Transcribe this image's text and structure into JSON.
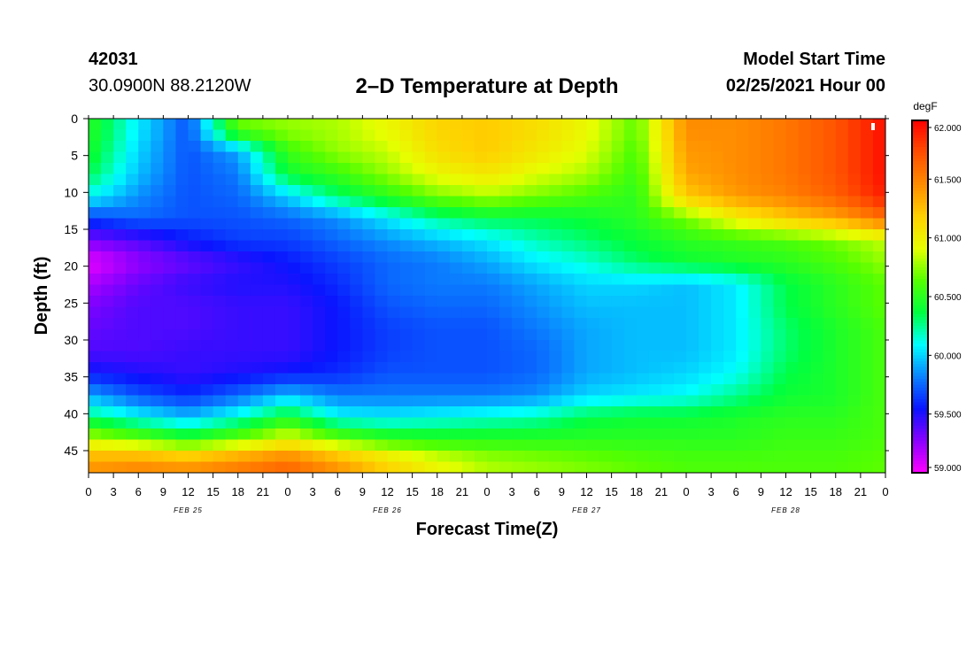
{
  "header": {
    "station_id": "42031",
    "coordinates": "30.0900N 88.2120W",
    "title": "2–D Temperature at Depth",
    "start_label": "Model Start Time",
    "start_value": "02/25/2021 Hour 00"
  },
  "chart_data": {
    "type": "heatmap",
    "title": "2–D Temperature at Depth",
    "xlabel": "Forecast Time(Z)",
    "ylabel": "Depth (ft)",
    "x_ticks": [
      "0",
      "3",
      "6",
      "9",
      "12",
      "15",
      "18",
      "21",
      "0",
      "3",
      "6",
      "9",
      "12",
      "15",
      "18",
      "21",
      "0",
      "3",
      "6",
      "9",
      "12",
      "15",
      "18",
      "21",
      "0",
      "3",
      "6",
      "9",
      "12",
      "15",
      "18",
      "21",
      "0"
    ],
    "x_hours_range": [
      0,
      96
    ],
    "day_labels": [
      "FEB 25",
      "FEB 26",
      "FEB 27",
      "FEB 28"
    ],
    "y_ticks": [
      0,
      5,
      10,
      15,
      20,
      25,
      30,
      35,
      40,
      45
    ],
    "ylim": [
      0,
      48
    ],
    "y_inverted": true,
    "colorbar": {
      "unit": "degF",
      "min": 59.0,
      "max": 62.0,
      "ticks": [
        "59.000",
        "59.500",
        "60.000",
        "60.500",
        "61.000",
        "61.500",
        "62.000"
      ],
      "colors": [
        "#ff00ff",
        "#8a00ff",
        "#0a14ff",
        "#0a82ff",
        "#00ffff",
        "#00ff40",
        "#55ff00",
        "#e6ff00",
        "#ffd000",
        "#ff8c00",
        "#ff4d00",
        "#ff0000"
      ]
    },
    "depth_bins": [
      1.5,
      4.5,
      7.5,
      10.5,
      13.5,
      16.5,
      19.5,
      22.5,
      25.5,
      28.5,
      31.5,
      34.5,
      37.5,
      40.5,
      43.5,
      46.5
    ],
    "time_hours": [
      0,
      6,
      12,
      18,
      24,
      30,
      36,
      42,
      48,
      54,
      60,
      66,
      72,
      78,
      84,
      90,
      96
    ],
    "temperature_degF": [
      [
        60.5,
        60.05,
        59.7,
        60.65,
        60.75,
        60.8,
        60.95,
        61.15,
        61.2,
        61.1,
        60.95,
        60.65,
        61.45,
        61.45,
        61.55,
        61.7,
        61.95
      ],
      [
        60.45,
        60.0,
        59.7,
        59.9,
        60.55,
        60.75,
        60.85,
        61.1,
        61.2,
        61.05,
        60.9,
        60.6,
        61.4,
        61.45,
        61.55,
        61.7,
        61.95
      ],
      [
        60.35,
        59.95,
        59.7,
        59.8,
        60.4,
        60.55,
        60.75,
        60.95,
        61.05,
        60.9,
        60.8,
        60.55,
        61.35,
        61.45,
        61.55,
        61.7,
        61.95
      ],
      [
        60.1,
        59.85,
        59.7,
        59.75,
        60.0,
        60.3,
        60.5,
        60.7,
        60.8,
        60.7,
        60.6,
        60.5,
        61.2,
        61.4,
        61.5,
        61.65,
        61.9
      ],
      [
        59.65,
        59.75,
        59.7,
        59.7,
        59.75,
        59.85,
        60.05,
        60.25,
        60.35,
        60.35,
        60.4,
        60.5,
        60.7,
        61.0,
        61.2,
        61.35,
        61.6
      ],
      [
        59.3,
        59.4,
        59.55,
        59.65,
        59.65,
        59.75,
        59.85,
        59.95,
        60.05,
        60.2,
        60.3,
        60.4,
        60.5,
        60.55,
        60.6,
        60.7,
        60.85
      ],
      [
        59.05,
        59.25,
        59.35,
        59.45,
        59.55,
        59.65,
        59.75,
        59.8,
        59.9,
        60.05,
        60.15,
        60.3,
        60.4,
        60.45,
        60.5,
        60.6,
        60.75
      ],
      [
        59.2,
        59.35,
        59.45,
        59.5,
        59.5,
        59.6,
        59.75,
        59.8,
        59.8,
        59.9,
        60.0,
        60.0,
        59.95,
        60.05,
        60.35,
        60.5,
        60.65
      ],
      [
        59.3,
        59.4,
        59.4,
        59.45,
        59.45,
        59.55,
        59.7,
        59.75,
        59.75,
        59.85,
        59.95,
        59.95,
        59.95,
        60.05,
        60.35,
        60.5,
        60.65
      ],
      [
        59.35,
        59.4,
        59.4,
        59.45,
        59.45,
        59.55,
        59.65,
        59.7,
        59.7,
        59.8,
        59.9,
        59.95,
        59.95,
        60.05,
        60.3,
        60.45,
        60.6
      ],
      [
        59.4,
        59.4,
        59.45,
        59.45,
        59.45,
        59.55,
        59.65,
        59.7,
        59.7,
        59.75,
        59.9,
        59.95,
        59.95,
        60.05,
        60.3,
        60.45,
        60.6
      ],
      [
        59.55,
        59.5,
        59.45,
        59.5,
        59.55,
        59.6,
        59.7,
        59.7,
        59.7,
        59.75,
        59.9,
        59.95,
        60.0,
        60.1,
        60.35,
        60.45,
        60.6
      ],
      [
        59.9,
        59.7,
        59.6,
        59.75,
        59.95,
        59.8,
        59.8,
        59.8,
        59.8,
        59.85,
        60.0,
        60.05,
        60.1,
        60.25,
        60.4,
        60.45,
        60.6
      ],
      [
        60.3,
        60.1,
        59.95,
        60.15,
        60.45,
        60.1,
        60.05,
        60.1,
        60.15,
        60.2,
        60.35,
        60.4,
        60.4,
        60.45,
        60.5,
        60.5,
        60.6
      ],
      [
        60.85,
        60.7,
        60.5,
        60.7,
        60.95,
        60.7,
        60.55,
        60.5,
        60.5,
        60.5,
        60.5,
        60.5,
        60.5,
        60.5,
        60.55,
        60.55,
        60.6
      ],
      [
        61.4,
        61.45,
        61.4,
        61.5,
        61.6,
        61.4,
        61.15,
        60.95,
        60.8,
        60.75,
        60.7,
        60.65,
        60.6,
        60.6,
        60.6,
        60.6,
        60.65
      ]
    ]
  }
}
